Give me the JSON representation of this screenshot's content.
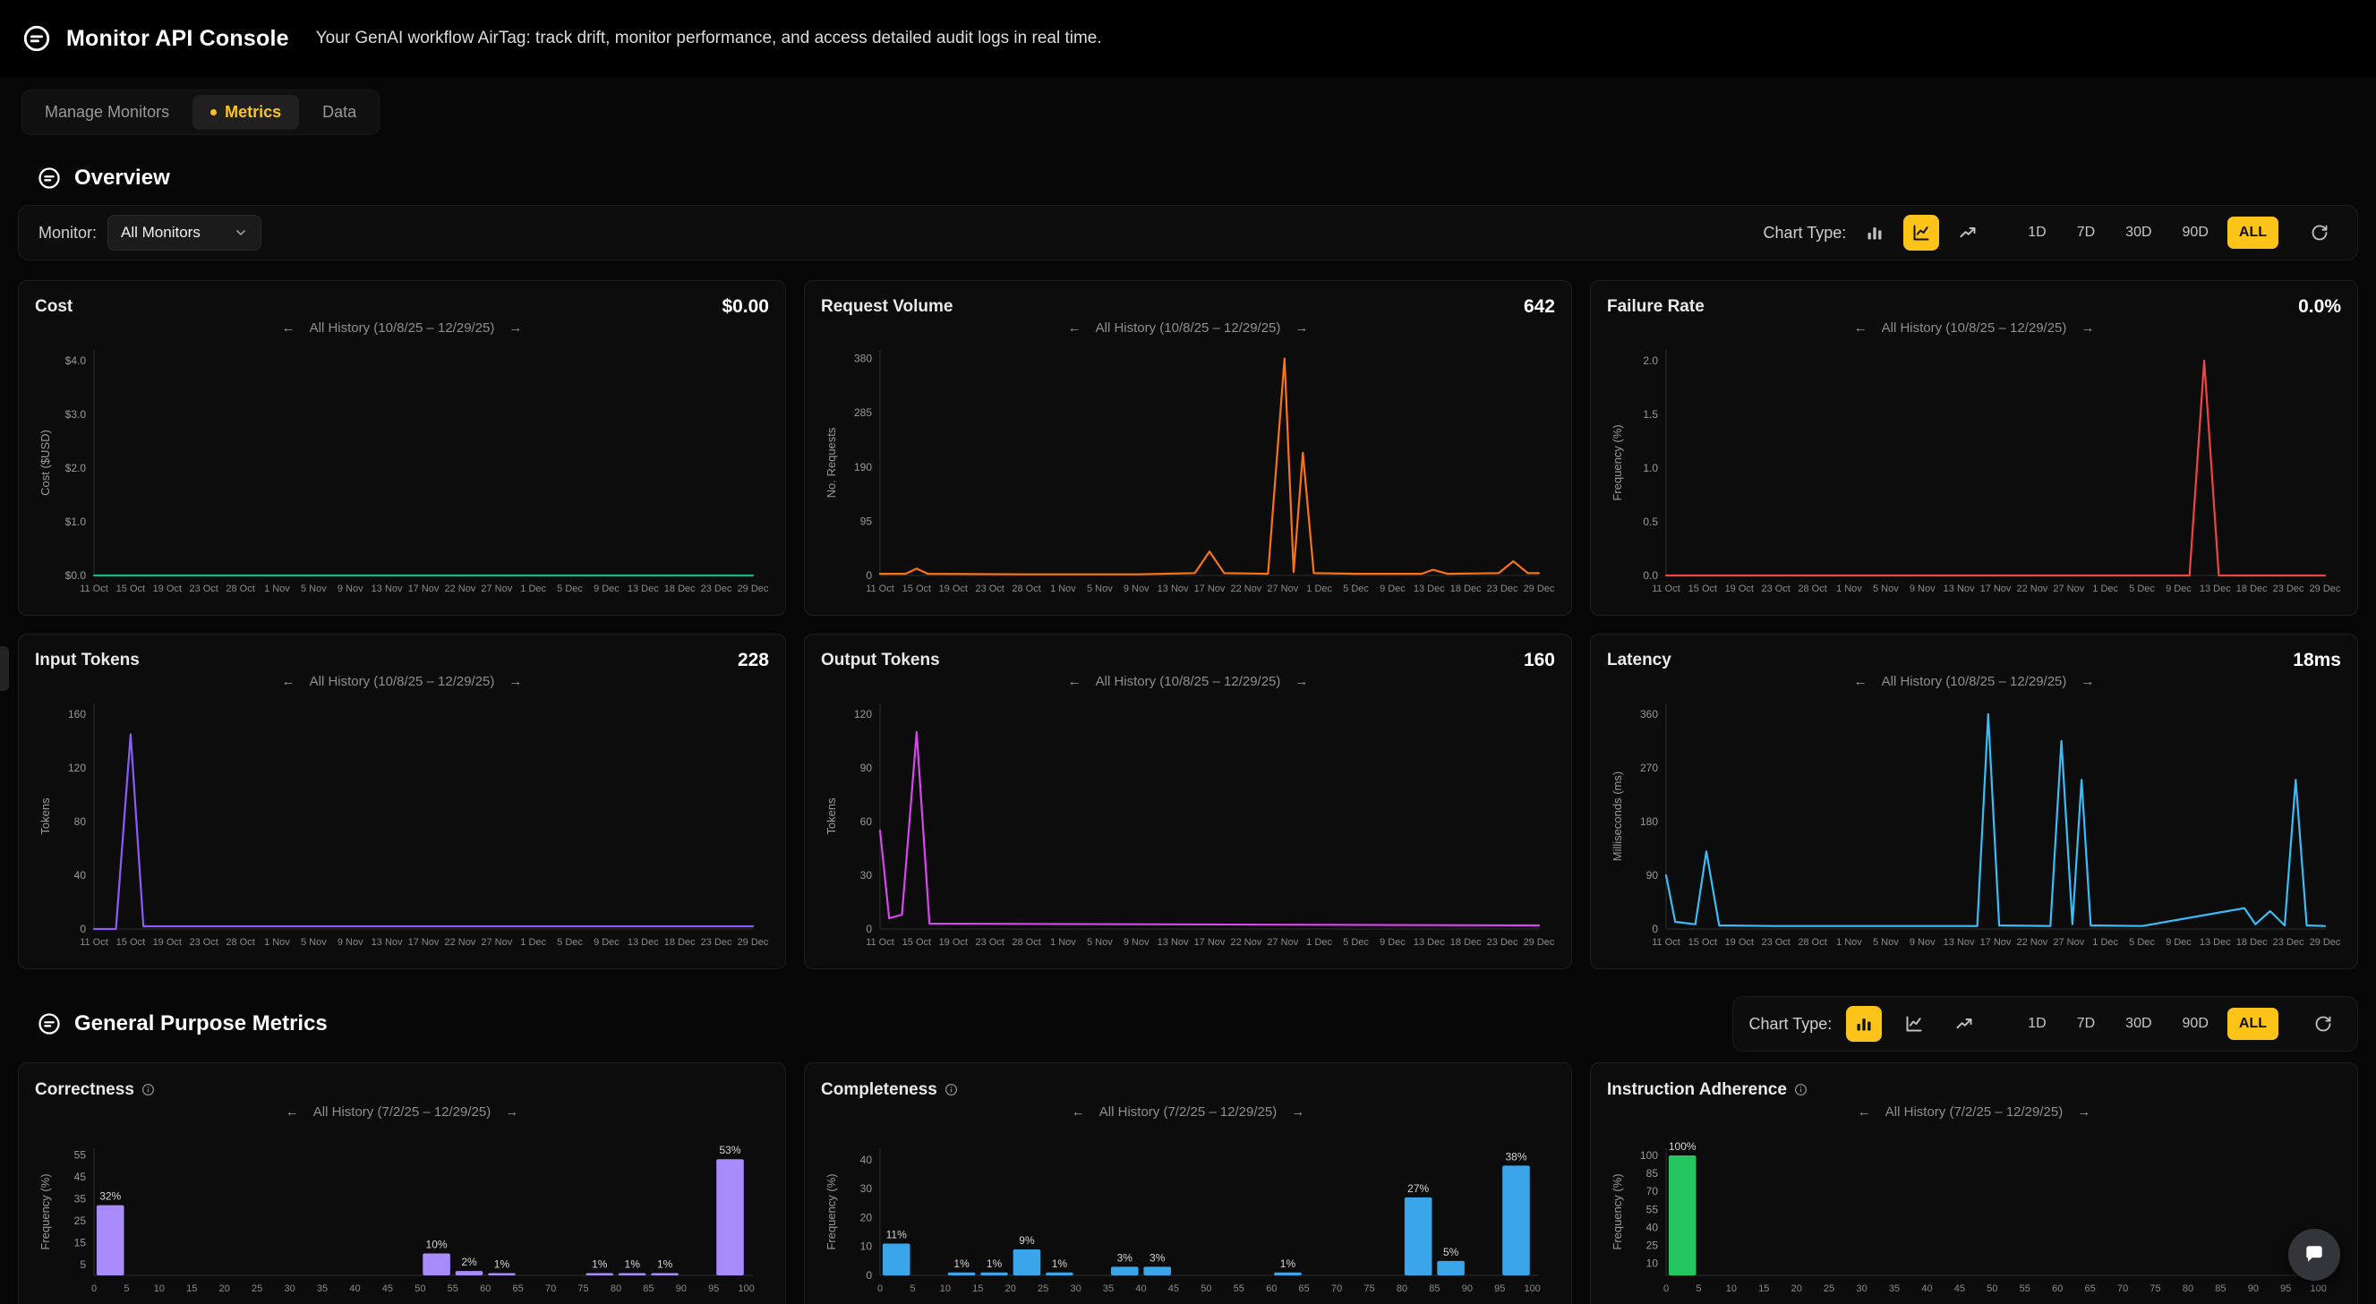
{
  "accent": "#fcc419",
  "icons": {
    "arrow_left": "←",
    "arrow_right": "→"
  },
  "header": {
    "title": "Monitor API Console",
    "subtitle": "Your GenAI workflow AirTag: track drift, monitor performance, and access detailed audit logs in real time."
  },
  "tabs": [
    {
      "label": "Manage Monitors"
    },
    {
      "label": "Metrics"
    },
    {
      "label": "Data"
    }
  ],
  "overview": {
    "section_title": "Overview",
    "monitor_label": "Monitor:",
    "monitor_value": "All Monitors",
    "chart_type_label": "Chart Type:",
    "active_chart_type": "line",
    "active_range": "ALL"
  },
  "general": {
    "section_title": "General Purpose Metrics",
    "chart_type_label": "Chart Type:",
    "active_chart_type": "bar",
    "active_range": "ALL"
  },
  "ranges": [
    "1D",
    "7D",
    "30D",
    "90D",
    "ALL"
  ],
  "chart_data": [
    {
      "type": "line",
      "title": "Cost",
      "value": "$0.00",
      "range_label": "All History (10/8/25 – 12/29/25)",
      "ylabel": "Cost ($USD)",
      "color": "#10b981",
      "ylim": [
        0,
        4.2
      ],
      "yticks": [
        {
          "v": 0,
          "l": "$0.0"
        },
        {
          "v": 1,
          "l": "$1.0"
        },
        {
          "v": 2,
          "l": "$2.0"
        },
        {
          "v": 3,
          "l": "$3.0"
        },
        {
          "v": 4,
          "l": "$4.0"
        }
      ],
      "x": [
        "11 Oct",
        "15 Oct",
        "19 Oct",
        "23 Oct",
        "28 Oct",
        "1 Nov",
        "5 Nov",
        "9 Nov",
        "13 Nov",
        "17 Nov",
        "22 Nov",
        "27 Nov",
        "1 Dec",
        "5 Dec",
        "9 Dec",
        "13 Dec",
        "18 Dec",
        "23 Dec",
        "29 Dec"
      ],
      "points": [
        [
          0,
          0
        ],
        [
          18,
          0
        ]
      ]
    },
    {
      "type": "line",
      "title": "Request Volume",
      "value": "642",
      "range_label": "All History (10/8/25 – 12/29/25)",
      "ylabel": "No. Requests",
      "color": "#f97316",
      "ylim": [
        0,
        395
      ],
      "yticks": [
        {
          "v": 0,
          "l": "0"
        },
        {
          "v": 95,
          "l": "95"
        },
        {
          "v": 190,
          "l": "190"
        },
        {
          "v": 285,
          "l": "285"
        },
        {
          "v": 380,
          "l": "380"
        }
      ],
      "x": [
        "11 Oct",
        "15 Oct",
        "19 Oct",
        "23 Oct",
        "28 Oct",
        "1 Nov",
        "5 Nov",
        "9 Nov",
        "13 Nov",
        "17 Nov",
        "22 Nov",
        "27 Nov",
        "1 Dec",
        "5 Dec",
        "9 Dec",
        "13 Dec",
        "18 Dec",
        "23 Dec",
        "29 Dec"
      ],
      "points": [
        [
          0,
          3
        ],
        [
          0.7,
          3
        ],
        [
          1,
          12
        ],
        [
          1.3,
          3
        ],
        [
          4,
          2
        ],
        [
          7,
          2
        ],
        [
          8.6,
          4
        ],
        [
          9,
          42
        ],
        [
          9.4,
          4
        ],
        [
          10.6,
          3
        ],
        [
          11.05,
          380
        ],
        [
          11.3,
          6
        ],
        [
          11.55,
          215
        ],
        [
          11.85,
          4
        ],
        [
          13,
          3
        ],
        [
          14.8,
          3
        ],
        [
          15.1,
          10
        ],
        [
          15.5,
          3
        ],
        [
          16.9,
          4
        ],
        [
          17.3,
          25
        ],
        [
          17.7,
          4
        ],
        [
          18,
          4
        ]
      ]
    },
    {
      "type": "line",
      "title": "Failure Rate",
      "value": "0.0%",
      "range_label": "All History (10/8/25 – 12/29/25)",
      "ylabel": "Frequency (%)",
      "color": "#ef4444",
      "ylim": [
        0,
        2.1
      ],
      "yticks": [
        {
          "v": 0,
          "l": "0.0"
        },
        {
          "v": 0.5,
          "l": "0.5"
        },
        {
          "v": 1,
          "l": "1.0"
        },
        {
          "v": 1.5,
          "l": "1.5"
        },
        {
          "v": 2,
          "l": "2.0"
        }
      ],
      "x": [
        "11 Oct",
        "15 Oct",
        "19 Oct",
        "23 Oct",
        "28 Oct",
        "1 Nov",
        "5 Nov",
        "9 Nov",
        "13 Nov",
        "17 Nov",
        "22 Nov",
        "27 Nov",
        "1 Dec",
        "5 Dec",
        "9 Dec",
        "13 Dec",
        "18 Dec",
        "23 Dec",
        "29 Dec"
      ],
      "points": [
        [
          0,
          0
        ],
        [
          14.3,
          0
        ],
        [
          14.7,
          2
        ],
        [
          15.1,
          0
        ],
        [
          18,
          0
        ]
      ]
    },
    {
      "type": "line",
      "title": "Input Tokens",
      "value": "228",
      "range_label": "All History (10/8/25 – 12/29/25)",
      "ylabel": "Tokens",
      "color": "#8b5cf6",
      "ylim": [
        0,
        168
      ],
      "yticks": [
        {
          "v": 0,
          "l": "0"
        },
        {
          "v": 40,
          "l": "40"
        },
        {
          "v": 80,
          "l": "80"
        },
        {
          "v": 120,
          "l": "120"
        },
        {
          "v": 160,
          "l": "160"
        }
      ],
      "x": [
        "11 Oct",
        "15 Oct",
        "19 Oct",
        "23 Oct",
        "28 Oct",
        "1 Nov",
        "5 Nov",
        "9 Nov",
        "13 Nov",
        "17 Nov",
        "22 Nov",
        "27 Nov",
        "1 Dec",
        "5 Dec",
        "9 Dec",
        "13 Dec",
        "18 Dec",
        "23 Dec",
        "29 Dec"
      ],
      "points": [
        [
          0,
          0
        ],
        [
          0.6,
          0
        ],
        [
          1,
          145
        ],
        [
          1.35,
          2
        ],
        [
          18,
          2
        ]
      ]
    },
    {
      "type": "line",
      "title": "Output Tokens",
      "value": "160",
      "range_label": "All History (10/8/25 – 12/29/25)",
      "ylabel": "Tokens",
      "color": "#d946ef",
      "ylim": [
        0,
        126
      ],
      "yticks": [
        {
          "v": 0,
          "l": "0"
        },
        {
          "v": 30,
          "l": "30"
        },
        {
          "v": 60,
          "l": "60"
        },
        {
          "v": 90,
          "l": "90"
        },
        {
          "v": 120,
          "l": "120"
        }
      ],
      "x": [
        "11 Oct",
        "15 Oct",
        "19 Oct",
        "23 Oct",
        "28 Oct",
        "1 Nov",
        "5 Nov",
        "9 Nov",
        "13 Nov",
        "17 Nov",
        "22 Nov",
        "27 Nov",
        "1 Dec",
        "5 Dec",
        "9 Dec",
        "13 Dec",
        "18 Dec",
        "23 Dec",
        "29 Dec"
      ],
      "points": [
        [
          0,
          55
        ],
        [
          0.25,
          6
        ],
        [
          0.6,
          8
        ],
        [
          1,
          110
        ],
        [
          1.35,
          3
        ],
        [
          18,
          2
        ]
      ]
    },
    {
      "type": "line",
      "title": "Latency",
      "value": "18ms",
      "range_label": "All History (10/8/25 – 12/29/25)",
      "ylabel": "Milliseconds (ms)",
      "color": "#38bdf8",
      "ylim": [
        0,
        378
      ],
      "yticks": [
        {
          "v": 0,
          "l": "0"
        },
        {
          "v": 90,
          "l": "90"
        },
        {
          "v": 180,
          "l": "180"
        },
        {
          "v": 270,
          "l": "270"
        },
        {
          "v": 360,
          "l": "360"
        }
      ],
      "x": [
        "11 Oct",
        "15 Oct",
        "19 Oct",
        "23 Oct",
        "28 Oct",
        "1 Nov",
        "5 Nov",
        "9 Nov",
        "13 Nov",
        "17 Nov",
        "22 Nov",
        "27 Nov",
        "1 Dec",
        "5 Dec",
        "9 Dec",
        "13 Dec",
        "18 Dec",
        "23 Dec",
        "29 Dec"
      ],
      "points": [
        [
          0,
          90
        ],
        [
          0.25,
          12
        ],
        [
          0.8,
          8
        ],
        [
          1.1,
          130
        ],
        [
          1.45,
          6
        ],
        [
          3,
          5
        ],
        [
          6,
          5
        ],
        [
          8.5,
          5
        ],
        [
          8.8,
          360
        ],
        [
          9.1,
          6
        ],
        [
          10.5,
          5
        ],
        [
          10.8,
          315
        ],
        [
          11.1,
          8
        ],
        [
          11.35,
          250
        ],
        [
          11.6,
          6
        ],
        [
          13,
          5
        ],
        [
          15.8,
          35
        ],
        [
          16.1,
          8
        ],
        [
          16.5,
          30
        ],
        [
          16.9,
          6
        ],
        [
          17.2,
          250
        ],
        [
          17.5,
          6
        ],
        [
          18,
          5
        ]
      ]
    },
    {
      "type": "bar",
      "title": "Correctness",
      "range_label": "All History (7/2/25 – 12/29/25)",
      "ylabel": "Frequency (%)",
      "color": "#a78bfa",
      "ylim": [
        0,
        58
      ],
      "yticks": [
        {
          "v": 5,
          "l": "5"
        },
        {
          "v": 15,
          "l": "15"
        },
        {
          "v": 25,
          "l": "25"
        },
        {
          "v": 35,
          "l": "35"
        },
        {
          "v": 45,
          "l": "45"
        },
        {
          "v": 55,
          "l": "55"
        }
      ],
      "xticks": [
        0,
        5,
        10,
        15,
        20,
        25,
        30,
        35,
        40,
        45,
        50,
        55,
        60,
        65,
        70,
        75,
        80,
        85,
        90,
        95,
        100
      ],
      "bars": [
        {
          "x": 0,
          "v": 32
        },
        {
          "x": 50,
          "v": 10
        },
        {
          "x": 55,
          "v": 2
        },
        {
          "x": 60,
          "v": 1
        },
        {
          "x": 75,
          "v": 1
        },
        {
          "x": 80,
          "v": 1
        },
        {
          "x": 85,
          "v": 1
        },
        {
          "x": 95,
          "v": 53
        }
      ]
    },
    {
      "type": "bar",
      "title": "Completeness",
      "range_label": "All History (7/2/25 – 12/29/25)",
      "ylabel": "Frequency (%)",
      "color": "#3aa5e8",
      "ylim": [
        0,
        44
      ],
      "yticks": [
        {
          "v": 0,
          "l": "0"
        },
        {
          "v": 10,
          "l": "10"
        },
        {
          "v": 20,
          "l": "20"
        },
        {
          "v": 30,
          "l": "30"
        },
        {
          "v": 40,
          "l": "40"
        }
      ],
      "xticks": [
        0,
        5,
        10,
        15,
        20,
        25,
        30,
        35,
        40,
        45,
        50,
        55,
        60,
        65,
        70,
        75,
        80,
        85,
        90,
        95,
        100
      ],
      "bars": [
        {
          "x": 0,
          "v": 11
        },
        {
          "x": 10,
          "v": 1
        },
        {
          "x": 15,
          "v": 1
        },
        {
          "x": 20,
          "v": 9
        },
        {
          "x": 25,
          "v": 1
        },
        {
          "x": 35,
          "v": 3
        },
        {
          "x": 40,
          "v": 3
        },
        {
          "x": 60,
          "v": 1
        },
        {
          "x": 80,
          "v": 27
        },
        {
          "x": 85,
          "v": 5
        },
        {
          "x": 95,
          "v": 38
        }
      ]
    },
    {
      "type": "bar",
      "title": "Instruction Adherence",
      "range_label": "All History (7/2/25 – 12/29/25)",
      "ylabel": "Frequency (%)",
      "color": "#22c55e",
      "ylim": [
        0,
        106
      ],
      "yticks": [
        {
          "v": 10,
          "l": "10"
        },
        {
          "v": 25,
          "l": "25"
        },
        {
          "v": 40,
          "l": "40"
        },
        {
          "v": 55,
          "l": "55"
        },
        {
          "v": 70,
          "l": "70"
        },
        {
          "v": 85,
          "l": "85"
        },
        {
          "v": 100,
          "l": "100"
        }
      ],
      "xticks": [
        0,
        5,
        10,
        15,
        20,
        25,
        30,
        35,
        40,
        45,
        50,
        55,
        60,
        65,
        70,
        75,
        80,
        85,
        90,
        95,
        100
      ],
      "bars": [
        {
          "x": 0,
          "v": 100
        }
      ]
    }
  ]
}
